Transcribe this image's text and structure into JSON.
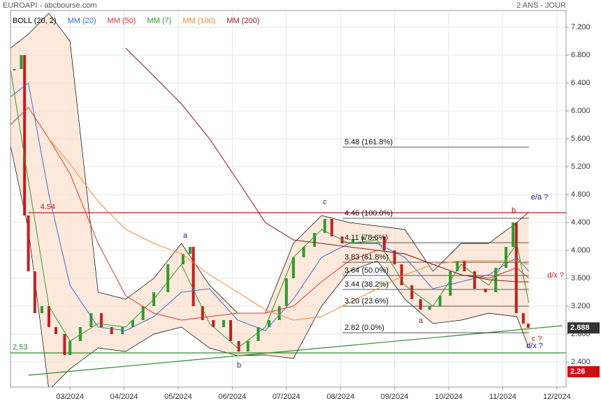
{
  "chart_data": {
    "type": "line",
    "title": "EUROAPI - abcbourse.com",
    "subtitle": "2 ANS - JOUR",
    "xlim": [
      1.9,
      12.17
    ],
    "ylim": [
      2.04,
      7.44
    ],
    "grid": true,
    "xticks": [
      {
        "value": 3,
        "label": "03/2024"
      },
      {
        "value": 4,
        "label": "04/2024"
      },
      {
        "value": 5,
        "label": "05/2024"
      },
      {
        "value": 6,
        "label": "06/2024"
      },
      {
        "value": 7,
        "label": "07/2024"
      },
      {
        "value": 8,
        "label": "08/2024"
      },
      {
        "value": 9,
        "label": "09/2024"
      },
      {
        "value": 10,
        "label": "10/2024"
      },
      {
        "value": 11,
        "label": "11/2024"
      },
      {
        "value": 12,
        "label": "12/2024"
      }
    ],
    "yticks": [
      {
        "value": 2.4,
        "label": "2.400"
      },
      {
        "value": 2.8,
        "label": "2.800"
      },
      {
        "value": 3.2,
        "label": "3.200"
      },
      {
        "value": 3.6,
        "label": "3.600"
      },
      {
        "value": 4.0,
        "label": "4.000"
      },
      {
        "value": 4.4,
        "label": "4.400"
      },
      {
        "value": 4.8,
        "label": "4.800"
      },
      {
        "value": 5.2,
        "label": "5.200"
      },
      {
        "value": 5.6,
        "label": "5.600"
      },
      {
        "value": 6.0,
        "label": "6.000"
      },
      {
        "value": 6.4,
        "label": "6.400"
      },
      {
        "value": 6.8,
        "label": "6.800"
      },
      {
        "value": 7.2,
        "label": "7.200"
      }
    ],
    "price": {
      "color": "#2e9a2e",
      "x": [
        1.97,
        2.1,
        2.16,
        2.23,
        2.35,
        2.48,
        2.61,
        2.74,
        2.9,
        3.0,
        3.19,
        3.39,
        3.58,
        3.77,
        3.97,
        4.16,
        4.35,
        4.55,
        4.81,
        5.09,
        5.22,
        5.28,
        5.45,
        5.65,
        5.84,
        5.97,
        6.12,
        6.29,
        6.48,
        6.68,
        6.87,
        7.0,
        7.13,
        7.32,
        7.52,
        7.71,
        7.84,
        8.03,
        8.23,
        8.42,
        8.61,
        8.81,
        9.0,
        9.13,
        9.32,
        9.48,
        9.65,
        9.84,
        10.03,
        10.16,
        10.29,
        10.48,
        10.68,
        10.87,
        11.06,
        11.19,
        11.25,
        11.38,
        11.47
      ],
      "values": [
        6.6,
        6.8,
        4.5,
        3.7,
        3.1,
        3.2,
        2.9,
        2.8,
        2.5,
        2.7,
        2.9,
        3.1,
        2.9,
        2.8,
        2.9,
        3.0,
        3.2,
        3.4,
        3.8,
        3.95,
        4.05,
        3.2,
        3.0,
        2.9,
        3.0,
        2.7,
        2.55,
        2.7,
        2.9,
        3.0,
        3.2,
        3.6,
        3.9,
        4.05,
        4.25,
        4.45,
        4.2,
        4.1,
        4.15,
        4.2,
        4.2,
        4.0,
        3.8,
        3.5,
        3.3,
        3.15,
        3.2,
        3.35,
        3.7,
        3.85,
        3.7,
        3.45,
        3.4,
        3.75,
        4.05,
        4.4,
        3.1,
        2.95,
        2.89
      ]
    },
    "series": [
      {
        "name": "BOLL (20, 2)",
        "color": "#000000",
        "x": [
          1.9,
          2.23,
          2.61,
          3.0,
          3.52,
          4.03,
          4.55,
          5.06,
          5.58,
          6.1,
          6.61,
          7.13,
          7.65,
          8.16,
          8.68,
          9.19,
          9.71,
          10.23,
          10.74,
          11.26,
          11.48
        ],
        "upper": [
          6.9,
          7.1,
          7.4,
          7.0,
          3.4,
          3.3,
          3.6,
          4.1,
          3.5,
          3.1,
          3.1,
          4.1,
          4.5,
          4.4,
          4.35,
          4.3,
          3.7,
          4.1,
          4.1,
          4.4,
          4.55
        ],
        "lower": [
          5.5,
          4.3,
          2.0,
          2.3,
          2.6,
          2.55,
          2.8,
          2.9,
          2.6,
          2.49,
          2.5,
          2.45,
          3.2,
          3.7,
          3.85,
          3.3,
          2.95,
          3.0,
          3.1,
          3.05,
          2.6
        ]
      },
      {
        "name": "MM (20)",
        "color": "#3a6fd8",
        "x": [
          1.9,
          2.23,
          2.61,
          3.0,
          3.52,
          4.03,
          4.55,
          5.06,
          5.58,
          6.1,
          6.61,
          7.13,
          7.65,
          8.16,
          8.68,
          9.19,
          9.71,
          10.23,
          10.74,
          11.26,
          11.48
        ],
        "values": [
          6.2,
          6.4,
          4.8,
          3.5,
          2.9,
          2.85,
          3.05,
          3.4,
          3.45,
          3.0,
          2.85,
          3.3,
          3.9,
          4.1,
          4.1,
          3.9,
          3.45,
          3.55,
          3.65,
          3.9,
          3.7
        ]
      },
      {
        "name": "MM (50)",
        "color": "#e03030",
        "x": [
          1.9,
          2.23,
          2.61,
          3.0,
          3.52,
          4.03,
          4.55,
          5.06,
          5.58,
          6.1,
          6.61,
          7.13,
          7.65,
          8.16,
          8.68,
          9.19,
          9.71,
          10.23,
          10.74,
          11.26,
          11.48
        ],
        "values": [
          5.8,
          6.05,
          5.6,
          5.1,
          4.1,
          3.35,
          3.1,
          3.0,
          3.05,
          3.1,
          3.1,
          3.2,
          3.55,
          3.85,
          4.0,
          3.95,
          3.8,
          3.65,
          3.6,
          3.75,
          3.6
        ]
      },
      {
        "name": "MM (7)",
        "color": "#2e9a2e",
        "x": [
          1.9,
          2.23,
          2.61,
          3.0,
          3.52,
          4.03,
          4.55,
          5.06,
          5.58,
          6.1,
          6.61,
          7.13,
          7.65,
          8.16,
          8.68,
          9.19,
          9.71,
          10.23,
          10.74,
          11.26,
          11.48
        ],
        "values": [
          6.6,
          5.0,
          3.2,
          2.7,
          2.95,
          2.9,
          3.3,
          3.8,
          2.95,
          2.6,
          2.9,
          3.9,
          4.3,
          4.1,
          4.15,
          3.5,
          3.2,
          3.8,
          3.5,
          4.1,
          3.25
        ]
      },
      {
        "name": "MM (100)",
        "color": "#f08a30",
        "x": [
          1.9,
          2.23,
          2.61,
          3.0,
          3.52,
          4.03,
          4.55,
          5.06,
          5.58,
          6.1,
          6.61,
          7.13,
          7.65,
          8.16,
          8.68,
          9.19,
          9.71,
          10.23,
          10.74,
          11.26,
          11.48
        ],
        "values": [
          null,
          null,
          5.6,
          5.24,
          4.7,
          4.3,
          4.1,
          3.95,
          3.65,
          3.4,
          3.15,
          3.0,
          3.05,
          3.25,
          3.45,
          3.65,
          3.8,
          3.85,
          3.85,
          3.85,
          3.8
        ]
      },
      {
        "name": "MM (200)",
        "color": "#8b1a1a",
        "x": [
          1.9,
          2.23,
          2.61,
          3.0,
          3.52,
          4.03,
          4.55,
          5.06,
          5.58,
          6.1,
          6.61,
          7.13,
          7.65,
          8.16,
          8.68,
          9.19,
          9.71,
          10.23,
          10.74,
          11.26,
          11.48
        ],
        "values": [
          null,
          null,
          null,
          null,
          null,
          6.9,
          6.5,
          6.1,
          5.6,
          5.0,
          4.4,
          4.15,
          4.1,
          4.05,
          4.0,
          3.95,
          3.8,
          3.65,
          3.58,
          3.55,
          3.55
        ]
      }
    ],
    "fib_levels": [
      {
        "value": 5.48,
        "label": "5.48  (161.8%)"
      },
      {
        "value": 4.46,
        "label": "4.46  (100.0%)"
      },
      {
        "value": 4.11,
        "label": "4.11  (78.6%)"
      },
      {
        "value": 3.83,
        "label": "3.83  (61.8%)"
      },
      {
        "value": 3.64,
        "label": "3.64  (50.0%)"
      },
      {
        "value": 3.44,
        "label": "3.44  (38.2%)"
      },
      {
        "value": 3.2,
        "label": "3.20  (23.6%)"
      },
      {
        "value": 2.82,
        "label": "2.82  (0.0%)"
      }
    ],
    "resistance": {
      "value": 4.54,
      "color": "#b22222"
    },
    "support": {
      "value": 2.53,
      "color": "#2e8b2e"
    },
    "trendline": {
      "x": [
        2.23,
        12.1
      ],
      "values": [
        2.21,
        2.92
      ],
      "color": "#2e8b2e"
    },
    "last_price": 2.888,
    "low_price": 2.26,
    "annotations": [
      "a",
      "b",
      "c",
      "a",
      "b",
      "e/a ?",
      "d/x ?",
      "c ?",
      "d/x ?"
    ]
  }
}
